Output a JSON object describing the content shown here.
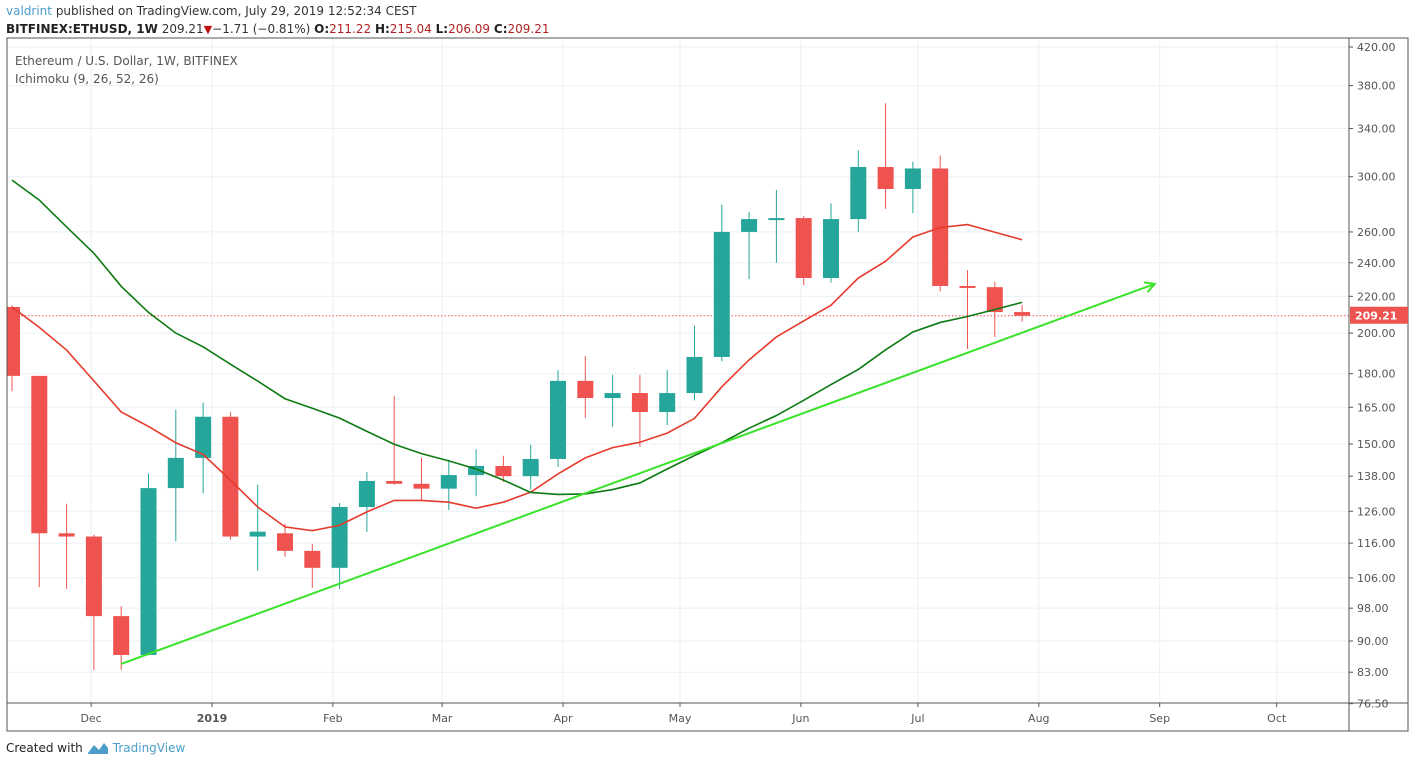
{
  "header": {
    "author": "valdrint",
    "published_text": "published on TradingView.com, July 29, 2019 12:52:34 CEST",
    "symbol": "BITFINEX:ETHUSD, 1W",
    "last": "209.21",
    "change": "−1.71 (−0.81%)",
    "change_direction": "down",
    "o_label": "O:",
    "o": "211.22",
    "h_label": "H:",
    "h": "215.04",
    "l_label": "L:",
    "l": "206.09",
    "c_label": "C:",
    "c": "209.21"
  },
  "legend": {
    "title": "Ethereum / U.S. Dollar, 1W, BITFINEX",
    "indicator": "Ichimoku (9, 26, 52, 26)"
  },
  "footer": {
    "created_with": "Created with",
    "brand": "TradingView",
    "logo_icon": "tradingview-logo-icon"
  },
  "colors": {
    "up": "#26a69a",
    "down": "#ef5350",
    "conversion_line": "#e53b2c",
    "base_line": "#0d7a12",
    "trendline": "#3ae22a",
    "last_price": "#ef5350",
    "grid": "#eaf0f5"
  },
  "chart_data": {
    "type": "candlestick",
    "scale": "log",
    "ylim": [
      76.5,
      420
    ],
    "grid": true,
    "last_price_label": "209.21",
    "y_ticks": [
      "420.00",
      "380.00",
      "340.00",
      "300.00",
      "260.00",
      "240.00",
      "220.00",
      "200.00",
      "180.00",
      "165.00",
      "150.00",
      "138.00",
      "126.00",
      "116.00",
      "106.00",
      "98.00",
      "90.00",
      "83.00",
      "76.50"
    ],
    "x_ticks": [
      {
        "label": "Dec",
        "date": "2018-12-01"
      },
      {
        "label": "2019",
        "date": "2019-01-01"
      },
      {
        "label": "Feb",
        "date": "2019-02-01"
      },
      {
        "label": "Mar",
        "date": "2019-03-01"
      },
      {
        "label": "Apr",
        "date": "2019-04-01"
      },
      {
        "label": "May",
        "date": "2019-05-01"
      },
      {
        "label": "Jun",
        "date": "2019-06-01"
      },
      {
        "label": "Jul",
        "date": "2019-07-01"
      },
      {
        "label": "Aug",
        "date": "2019-08-01"
      },
      {
        "label": "Sep",
        "date": "2019-09-01"
      },
      {
        "label": "Oct",
        "date": "2019-10-01"
      }
    ],
    "candles_columns": [
      "date",
      "open",
      "high",
      "low",
      "close"
    ],
    "candles": [
      [
        "2018-11-12",
        214,
        215,
        172,
        179
      ],
      [
        "2018-11-19",
        179,
        179,
        103.5,
        119
      ],
      [
        "2018-11-26",
        119,
        128.5,
        103,
        118
      ],
      [
        "2018-12-03",
        118,
        118.5,
        83.5,
        96
      ],
      [
        "2018-12-10",
        96,
        98.5,
        83.5,
        86.8
      ],
      [
        "2018-12-17",
        86.8,
        139,
        86.7,
        133.8
      ],
      [
        "2018-12-24",
        133.8,
        164,
        116.6,
        144.7
      ],
      [
        "2018-12-31",
        144.7,
        167,
        132,
        161
      ],
      [
        "2019-01-07",
        161,
        163,
        117,
        118
      ],
      [
        "2019-01-14",
        118,
        135,
        108,
        119.5
      ],
      [
        "2019-01-21",
        119,
        122,
        112,
        113.7
      ],
      [
        "2019-01-28",
        113.7,
        115.8,
        103.3,
        108.8
      ],
      [
        "2019-02-04",
        108.8,
        128.7,
        103,
        127.4
      ],
      [
        "2019-02-11",
        127.4,
        139.5,
        119.4,
        136.3
      ],
      [
        "2019-02-18",
        136.3,
        170,
        135,
        135.3
      ],
      [
        "2019-02-25",
        135.3,
        144.7,
        129.4,
        133.6
      ],
      [
        "2019-03-04",
        133.6,
        144,
        126.4,
        138.4
      ],
      [
        "2019-03-11",
        138.4,
        148,
        131,
        141.7
      ],
      [
        "2019-03-18",
        141.7,
        145.5,
        136,
        138
      ],
      [
        "2019-03-25",
        138,
        149.7,
        133.3,
        144.3
      ],
      [
        "2019-04-01",
        144.3,
        181.7,
        141.3,
        176.7
      ],
      [
        "2019-04-08",
        176.7,
        188.5,
        160.5,
        169
      ],
      [
        "2019-04-15",
        169,
        179.5,
        156.8,
        171.2
      ],
      [
        "2019-04-22",
        171.2,
        179.5,
        149,
        163
      ],
      [
        "2019-04-29",
        163,
        181.7,
        157.5,
        171.2
      ],
      [
        "2019-05-06",
        171.2,
        204,
        168,
        188
      ],
      [
        "2019-05-13",
        188,
        279,
        186,
        260
      ],
      [
        "2019-05-20",
        260,
        274,
        230,
        268.8
      ],
      [
        "2019-05-27",
        268.8,
        290,
        240,
        269.5
      ],
      [
        "2019-06-03",
        269.5,
        271,
        226.5,
        230.7
      ],
      [
        "2019-06-10",
        230.7,
        280,
        228,
        268.8
      ],
      [
        "2019-06-17",
        268.8,
        321.5,
        260,
        307.7
      ],
      [
        "2019-06-24",
        307.7,
        363,
        276,
        290.6
      ],
      [
        "2019-07-01",
        290.6,
        312,
        273,
        306.5
      ],
      [
        "2019-07-08",
        306.5,
        317,
        223,
        226
      ],
      [
        "2019-07-15",
        226,
        235.5,
        192,
        225.3
      ],
      [
        "2019-07-22",
        225.3,
        228.5,
        198,
        211.22
      ],
      [
        "2019-07-29",
        211.22,
        215.04,
        206.09,
        209.21
      ]
    ],
    "conversion_line": [
      214,
      203,
      191.4,
      176.7,
      163,
      157,
      150.5,
      146,
      136.6,
      127.4,
      121,
      119.8,
      121.5,
      125.8,
      129.6,
      129.6,
      129,
      127,
      129,
      132.4,
      138.8,
      144.7,
      148.6,
      150.7,
      154.3,
      160.3,
      174,
      186.6,
      198,
      206.4,
      215,
      230.7,
      241,
      256.6,
      263,
      265,
      259.8,
      254.8
    ],
    "base_line": [
      297.4,
      282.4,
      263.4,
      246,
      225.8,
      211,
      200,
      193,
      184.5,
      176.6,
      168.7,
      164.6,
      160.4,
      155,
      149.9,
      146.3,
      143.6,
      140.6,
      136.6,
      132.3,
      131.6,
      131.8,
      133.3,
      135.6,
      140.6,
      145.6,
      150.5,
      156.3,
      161.5,
      168,
      175,
      182,
      191.5,
      200.6,
      205.6,
      208.8,
      212.6,
      216.6
    ],
    "trendline": {
      "from": {
        "date": "2018-12-10",
        "price": 84.8
      },
      "to": {
        "date": "2019-09-01",
        "price": 227.2
      },
      "arrow": true
    }
  }
}
